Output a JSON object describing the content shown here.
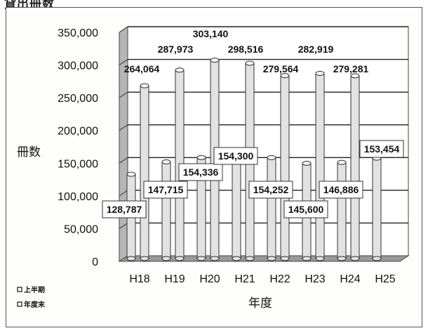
{
  "page": {
    "title": "貸出冊数"
  },
  "chart_data": {
    "type": "bar",
    "title": "",
    "categories": [
      "H18",
      "H19",
      "H20",
      "H21",
      "H22",
      "H23",
      "H24",
      "H25"
    ],
    "series": [
      {
        "name": "上半期",
        "values": [
          128787,
          147715,
          154336,
          154300,
          154252,
          145600,
          146886,
          153454
        ]
      },
      {
        "name": "年度末",
        "values": [
          264064,
          287973,
          303140,
          298516,
          279564,
          282919,
          279281,
          null
        ]
      }
    ],
    "data_labels": {
      "first_half": [
        "128,787",
        "147,715",
        "154,336",
        "154,300",
        "154,252",
        "145,600",
        "146,886",
        "153,454"
      ],
      "year_end": [
        "264,064",
        "287,973",
        "303,140",
        "298,516",
        "279,564",
        "282,919",
        "279,281",
        ""
      ]
    },
    "y_ticks": [
      "0",
      "50,000",
      "100,000",
      "150,000",
      "200,000",
      "250,000",
      "300,000",
      "350,000"
    ],
    "ylim": [
      0,
      350000
    ],
    "xlabel": "年度",
    "ylabel": "冊数",
    "grid": true,
    "legend_position": "bottom-left",
    "colors": {
      "bar_fill": "#e2e2e2",
      "bar_edge": "#333333",
      "floor": "#9a9a9a",
      "wall_side": "#b5b5b5"
    }
  }
}
